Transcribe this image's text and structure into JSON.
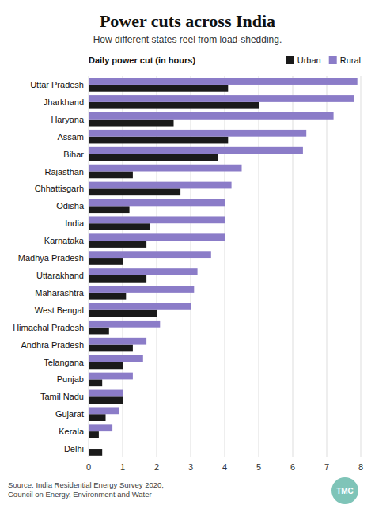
{
  "chart_data": {
    "type": "bar",
    "orientation": "horizontal",
    "title": "Power cuts across India",
    "subtitle": "How different states reel from load-shedding.",
    "x_label": "Daily power cut (in hours)",
    "source": "Source: India Residential Energy Survey 2020;\nCouncil on Energy, Environment and Water",
    "logo": "TMC",
    "categories": [
      "Uttar Pradesh",
      "Jharkhand",
      "Haryana",
      "Assam",
      "Bihar",
      "Rajasthan",
      "Chhattisgarh",
      "Odisha",
      "India",
      "Karnataka",
      "Madhya Pradesh",
      "Uttarakhand",
      "Maharashtra",
      "West Bengal",
      "Himachal Pradesh",
      "Andhra Pradesh",
      "Telangana",
      "Punjab",
      "Tamil Nadu",
      "Gujarat",
      "Kerala",
      "Delhi"
    ],
    "series": [
      {
        "name": "Urban",
        "color": "#1a1a1a",
        "values": [
          4.1,
          5.0,
          2.5,
          4.1,
          3.8,
          1.3,
          2.7,
          1.2,
          1.8,
          1.7,
          1.0,
          1.7,
          1.1,
          2.0,
          0.6,
          1.3,
          1.0,
          0.4,
          1.0,
          0.5,
          0.3,
          0.4
        ]
      },
      {
        "name": "Rural",
        "color": "#8b7cc8",
        "values": [
          7.9,
          7.8,
          7.2,
          6.4,
          6.3,
          4.5,
          4.2,
          4.0,
          4.0,
          4.0,
          3.6,
          3.2,
          3.1,
          3.0,
          2.1,
          1.7,
          1.6,
          1.3,
          1.0,
          0.9,
          0.7,
          0.0
        ]
      }
    ],
    "xlim": [
      0,
      8
    ],
    "xticks": [
      0,
      1,
      2,
      3,
      4,
      5,
      6,
      7,
      8
    ],
    "grid": true,
    "legend": "top"
  }
}
